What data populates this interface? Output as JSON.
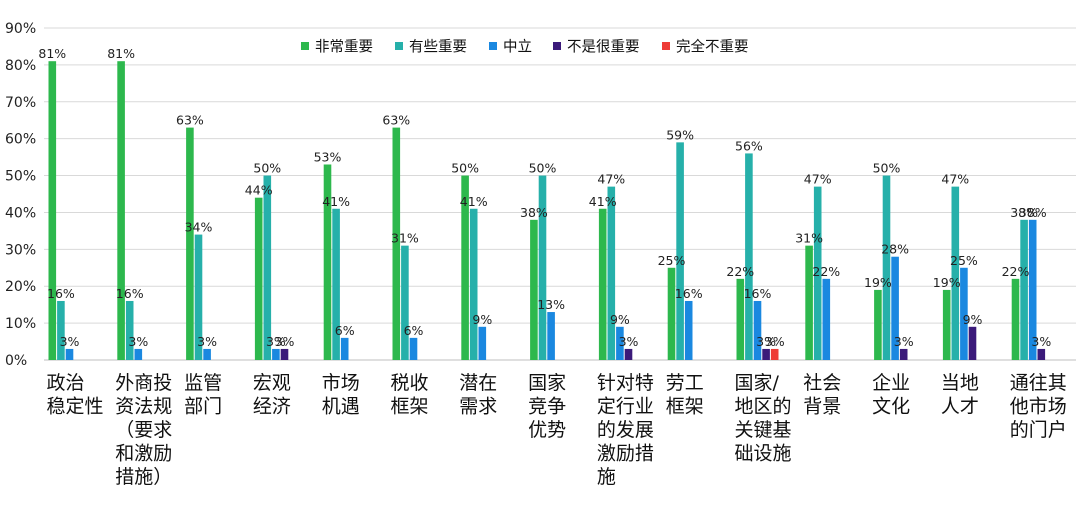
{
  "chart_data": {
    "type": "bar",
    "categories": [
      [
        "政治",
        "稳定性"
      ],
      [
        "外商投",
        "资法规",
        "（要求",
        "和激励",
        "措施）"
      ],
      [
        "监管",
        "部门"
      ],
      [
        "宏观",
        "经济"
      ],
      [
        "市场",
        "机遇"
      ],
      [
        "税收",
        "框架"
      ],
      [
        "潜在",
        "需求"
      ],
      [
        "国家",
        "竞争",
        "优势"
      ],
      [
        "针对特",
        "定行业",
        "的发展",
        "激励措",
        "施"
      ],
      [
        "劳工",
        "框架"
      ],
      [
        "国家/",
        "地区的",
        "关键基",
        "础设施"
      ],
      [
        "社会",
        "背景"
      ],
      [
        "企业",
        "文化"
      ],
      [
        "当地",
        "人才"
      ],
      [
        "通往其",
        "他市场",
        "的门户"
      ]
    ],
    "series": [
      {
        "name": "非常重要",
        "color": "#2db84d",
        "values": [
          81,
          81,
          63,
          44,
          53,
          63,
          50,
          38,
          41,
          25,
          22,
          31,
          19,
          19,
          22
        ]
      },
      {
        "name": "有些重要",
        "color": "#26b0aa",
        "values": [
          16,
          16,
          34,
          50,
          41,
          31,
          41,
          50,
          47,
          59,
          56,
          47,
          50,
          47,
          38
        ]
      },
      {
        "name": "中立",
        "color": "#1a88e0",
        "values": [
          3,
          3,
          3,
          3,
          6,
          6,
          9,
          13,
          9,
          16,
          16,
          22,
          28,
          25,
          38
        ]
      },
      {
        "name": "不是很重要",
        "color": "#3b1a7a",
        "values": [
          0,
          0,
          0,
          3,
          0,
          0,
          0,
          0,
          3,
          0,
          3,
          0,
          3,
          9,
          3
        ]
      },
      {
        "name": "完全不重要",
        "color": "#ee3b36",
        "values": [
          0,
          0,
          0,
          0,
          0,
          0,
          0,
          0,
          0,
          0,
          3,
          0,
          0,
          0,
          0
        ]
      }
    ],
    "ylim": [
      0,
      90
    ],
    "yticks": [
      "0%",
      "10%",
      "20%",
      "30%",
      "40%",
      "50%",
      "60%",
      "70%",
      "80%",
      "90%"
    ],
    "grid": true,
    "legend": "top-center"
  }
}
